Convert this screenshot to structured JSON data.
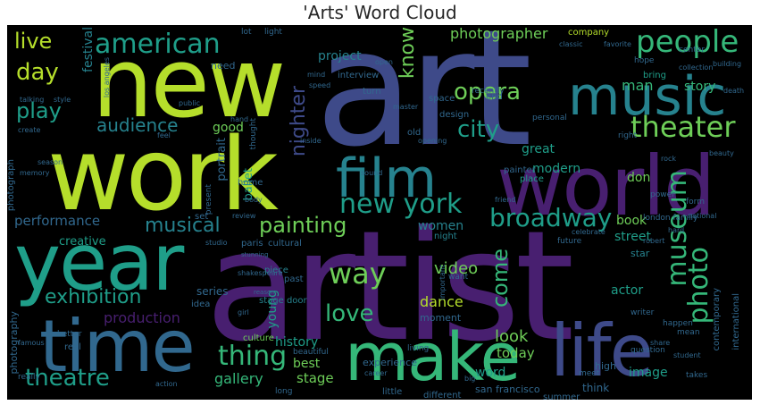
{
  "title": "'Arts' Word Cloud",
  "colors": {
    "purple": "#481f70",
    "indigo": "#3e4a89",
    "blue": "#31688e",
    "teal": "#26828e",
    "green_teal": "#1f9e89",
    "green": "#35b779",
    "light_green": "#6ece58",
    "yellow_green": "#b5de2b",
    "background": "#000000"
  },
  "words": {
    "art": "art",
    "artist": "artist",
    "new": "new",
    "work": "work",
    "world": "world",
    "year": "year",
    "time": "time",
    "make": "make",
    "life": "life",
    "music": "music",
    "film": "film",
    "people": "people",
    "american": "american",
    "theater": "theater",
    "opera": "opera",
    "city": "city",
    "new_york": "new york",
    "museum": "museum",
    "photo": "photo",
    "painting": "painting",
    "broadway": "broadway",
    "way": "way",
    "love": "love",
    "thing": "thing",
    "theatre": "theatre",
    "exhibition": "exhibition",
    "musical": "musical",
    "audience": "audience",
    "play": "play",
    "day": "day",
    "live": "live",
    "performance": "performance",
    "photographer": "photographer",
    "nighter": "nighter",
    "know": "know",
    "come": "come",
    "video": "video",
    "dance": "dance",
    "production": "production",
    "gallery": "gallery",
    "stage": "stage",
    "best": "best",
    "history": "history",
    "look": "look",
    "today": "today",
    "word": "word",
    "book": "book",
    "street": "street",
    "image": "image",
    "story": "story",
    "man": "man",
    "project": "project",
    "festival": "festival",
    "good": "good",
    "great": "great",
    "modern": "modern",
    "don": "don",
    "women": "women",
    "portrait": "portrait",
    "ballet": "ballet",
    "creative": "creative",
    "young": "young",
    "series": "series",
    "actor": "actor",
    "san_francisco": "san francisco",
    "experience": "experience",
    "moment": "moment",
    "interview": "interview",
    "design": "design",
    "space": "space",
    "company": "company",
    "bring": "bring",
    "need": "need",
    "place": "place",
    "night": "night",
    "star": "star",
    "stage_door": "stage door",
    "piece": "piece",
    "culture": "culture",
    "photograph": "photograph",
    "photography": "photography",
    "different": "different",
    "little": "little",
    "think": "think",
    "high": "high",
    "summer": "summer",
    "international": "international",
    "contemporary": "contemporary",
    "london_family": "london family",
    "home": "home",
    "past": "past",
    "set": "set",
    "idea": "idea",
    "paris": "paris",
    "cultural": "cultural",
    "old": "old",
    "end": "end",
    "turn": "turn",
    "recently": "recently",
    "personal": "personal",
    "painter": "painter",
    "light": "light",
    "lot": "lot",
    "hope": "hope",
    "center": "center",
    "collection": "collection",
    "classic": "classic",
    "favorite": "favorite",
    "power": "power",
    "form": "form",
    "right": "right",
    "national": "national",
    "writer": "writer",
    "happen": "happen",
    "mean": "mean",
    "question": "question",
    "takes": "takes",
    "meet": "meet",
    "real": "real",
    "really": "really",
    "better": "better",
    "living": "living",
    "beautiful": "beautiful",
    "long": "long",
    "future": "future",
    "celebrate": "celebrate",
    "robert": "robert",
    "hard": "hard",
    "public": "public",
    "master": "master",
    "open": "open",
    "girl": "girl",
    "want": "want",
    "big": "big",
    "important": "important",
    "famous": "famous",
    "season": "season",
    "create": "create",
    "feel": "feel",
    "action": "action",
    "career": "career",
    "los_angeles": "los angeles",
    "opening": "opening",
    "share": "share",
    "student": "student",
    "death": "death",
    "building": "building",
    "beauty": "beauty",
    "thought": "thought",
    "present": "present",
    "review": "review",
    "body": "body",
    "hand": "hand",
    "studio": "studio",
    "music_2": "music",
    "memory": "memory",
    "talking": "talking",
    "style": "style",
    "mind": "mind",
    "speed": "speed",
    "inside": "inside",
    "shakespeare": "shakespeare",
    "stunning": "stunning",
    "reason": "reason",
    "sound": "sound",
    "rock": "rock",
    "friend": "friend"
  }
}
